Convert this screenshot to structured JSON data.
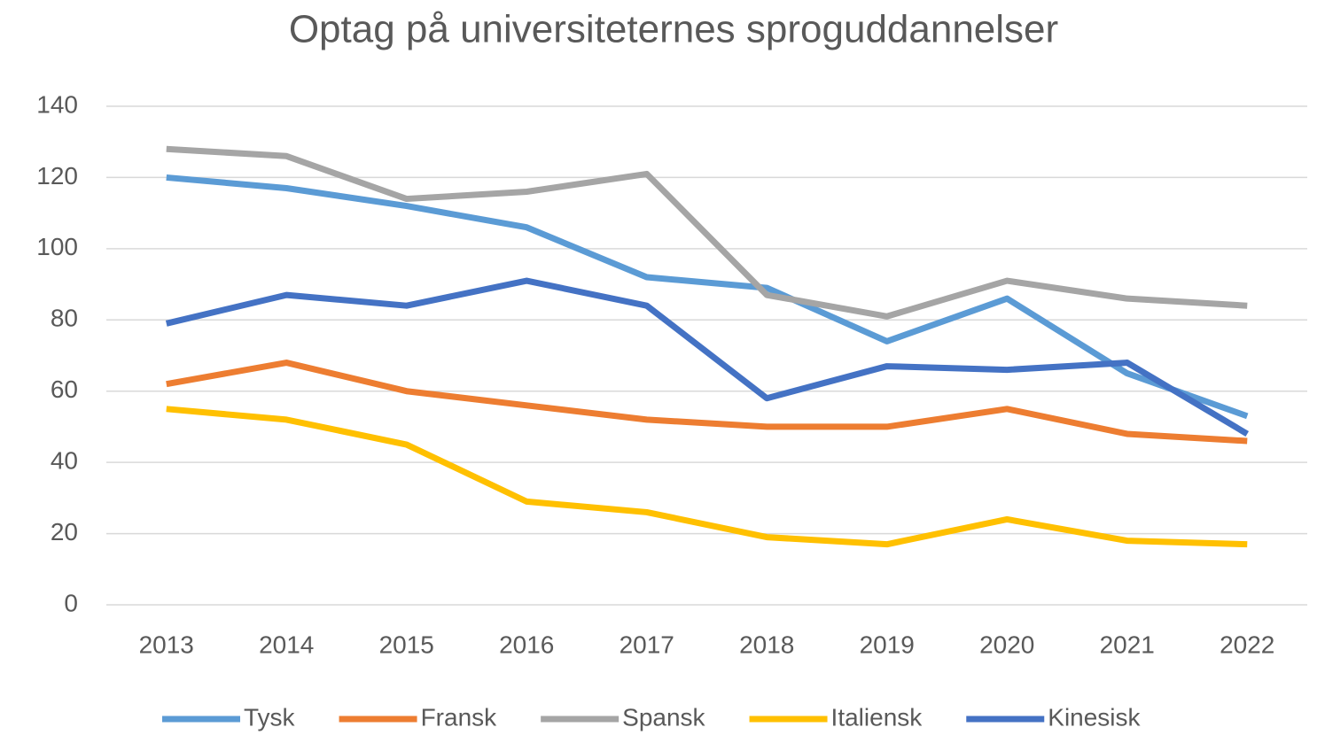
{
  "chart_data": {
    "type": "line",
    "title": "Optag på universiteternes sproguddannelser",
    "categories": [
      "2013",
      "2014",
      "2015",
      "2016",
      "2017",
      "2018",
      "2019",
      "2020",
      "2021",
      "2022"
    ],
    "series": [
      {
        "name": "Tysk",
        "color": "#5b9bd5",
        "values": [
          120,
          117,
          112,
          106,
          92,
          89,
          74,
          86,
          65,
          53
        ]
      },
      {
        "name": "Fransk",
        "color": "#ed7d31",
        "values": [
          62,
          68,
          60,
          56,
          52,
          50,
          50,
          55,
          48,
          46
        ]
      },
      {
        "name": "Spansk",
        "color": "#a5a5a5",
        "values": [
          128,
          126,
          114,
          116,
          121,
          87,
          81,
          91,
          86,
          84
        ]
      },
      {
        "name": "Italiensk",
        "color": "#ffc000",
        "values": [
          55,
          52,
          45,
          29,
          26,
          19,
          17,
          24,
          18,
          17
        ]
      },
      {
        "name": "Kinesisk",
        "color": "#4472c4",
        "values": [
          79,
          87,
          84,
          91,
          84,
          58,
          67,
          66,
          68,
          48
        ]
      }
    ],
    "ylim": [
      0,
      140
    ],
    "yticks": [
      0,
      20,
      40,
      60,
      80,
      100,
      120,
      140
    ],
    "grid": true,
    "legend": "bottom"
  }
}
